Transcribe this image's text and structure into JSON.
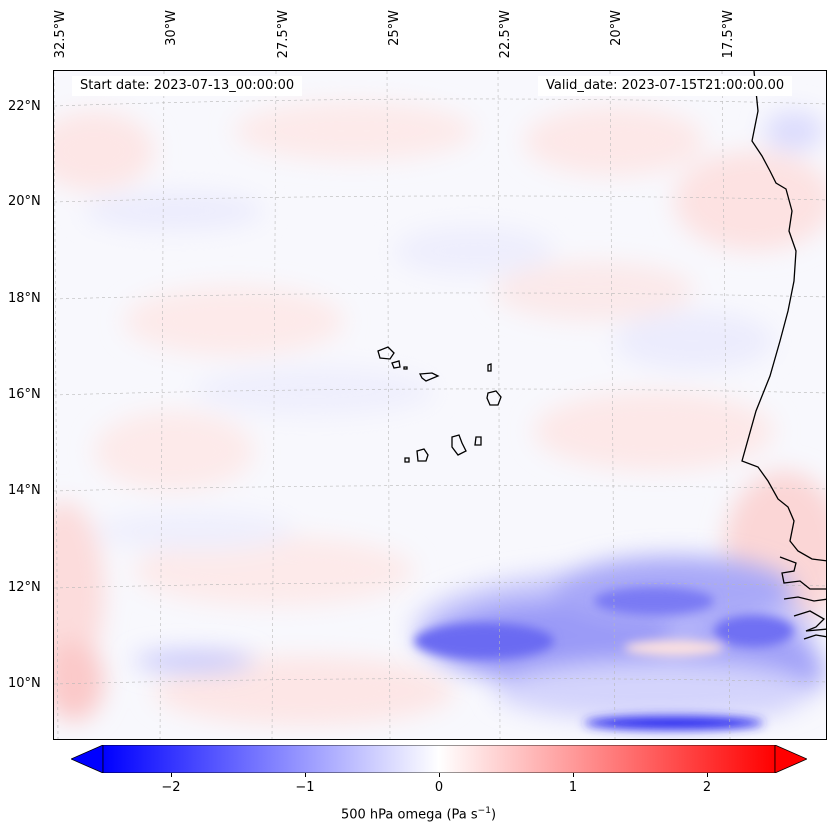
{
  "map": {
    "start_label": "Start date: 2023-07-13_00:00:00",
    "valid_label": "Valid_date: 2023-07-15T21:00:00.00",
    "lon_labels": [
      "32.5°W",
      "30°W",
      "27.5°W",
      "25°W",
      "22.5°W",
      "20°W",
      "17.5°W"
    ],
    "lat_labels": [
      "22°N",
      "20°N",
      "18°N",
      "16°N",
      "14°N",
      "12°N",
      "10°N"
    ],
    "variable": "500 hPa omega",
    "colors": {
      "negative": "#0000ff",
      "zero": "#ffffff",
      "positive": "#ff0000",
      "coast": "#000000"
    }
  },
  "colorbar": {
    "label_prefix": "500 hPa omega (Pa s",
    "label_exp": "−1",
    "label_suffix": ")",
    "ticks": [
      "−2",
      "−1",
      "0",
      "1",
      "2"
    ],
    "tick_values": [
      -2,
      -1,
      0,
      1,
      2
    ],
    "range": [
      -2.5,
      2.5
    ]
  }
}
